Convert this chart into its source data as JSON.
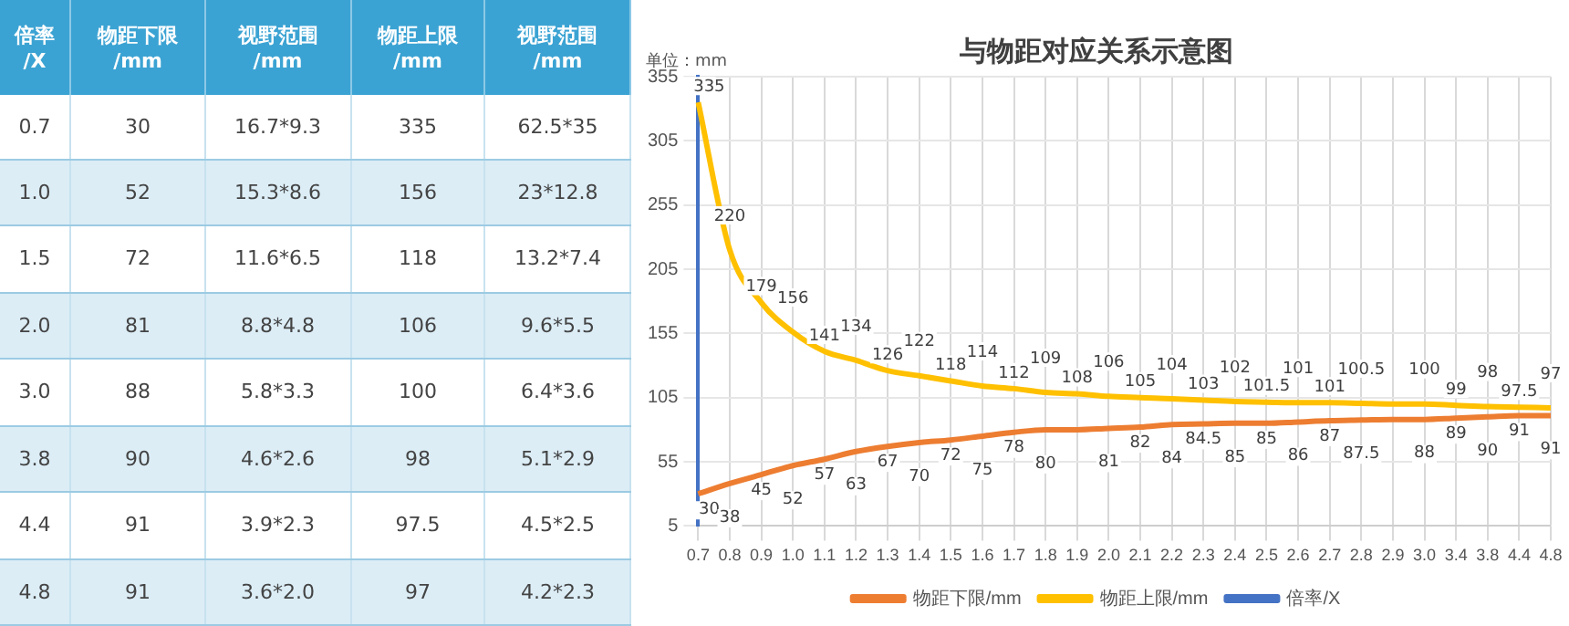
{
  "chart_data": [
    {
      "type": "other",
      "categories": [
        "倍率/X",
        "物距下限/mm",
        "视野范围/mm",
        "物距上限/mm",
        "视野范围/mm"
      ],
      "cell_labels": [
        [
          "0.7",
          "30",
          "16.7*9.3",
          "335",
          "62.5*35"
        ],
        [
          "1.0",
          "52",
          "15.3*8.6",
          "156",
          "23*12.8"
        ],
        [
          "1.5",
          "72",
          "11.6*6.5",
          "118",
          "13.2*7.4"
        ],
        [
          "2.0",
          "81",
          "8.8*4.8",
          "106",
          "9.6*5.5"
        ],
        [
          "3.0",
          "88",
          "5.8*3.3",
          "100",
          "6.4*3.6"
        ],
        [
          "3.8",
          "90",
          "4.6*2.6",
          "98",
          "5.1*2.9"
        ],
        [
          "4.4",
          "91",
          "3.9*2.3",
          "97.5",
          "4.5*2.5"
        ],
        [
          "4.8",
          "91",
          "3.6*2.0",
          "97",
          "4.2*2.3"
        ]
      ]
    },
    {
      "type": "line",
      "title": "与物距对应关系示意图",
      "ylabel": "单位：mm",
      "categories": [
        "0.7",
        "0.8",
        "0.9",
        "1.0",
        "1.1",
        "1.2",
        "1.3",
        "1.4",
        "1.5",
        "1.6",
        "1.7",
        "1.8",
        "1.9",
        "2.0",
        "2.1",
        "2.2",
        "2.3",
        "2.4",
        "2.5",
        "2.6",
        "2.7",
        "2.8",
        "2.9",
        "3.0",
        "3.4",
        "3.8",
        "4.4",
        "4.8"
      ],
      "series": [
        {
          "name": "物距下限/mm",
          "color": "#ed7d31",
          "values": [
            30,
            38,
            45,
            52,
            57,
            63,
            67,
            70,
            72,
            75,
            78,
            80,
            80,
            81,
            82,
            84,
            84.5,
            85,
            85,
            86,
            87,
            87.5,
            88,
            88,
            89,
            90,
            91,
            91
          ],
          "value_labels": [
            "30",
            "38",
            "45",
            "52",
            "57",
            "63",
            "67",
            "70",
            "72",
            "75",
            "78",
            "80",
            null,
            "81",
            "82",
            "84",
            "84.5",
            "85",
            "85",
            "86",
            "87",
            "87.5",
            null,
            "88",
            "89",
            "90",
            "91",
            "91"
          ]
        },
        {
          "name": "物距上限/mm",
          "color": "#ffc000",
          "values": [
            335,
            220,
            179,
            156,
            141,
            134,
            126,
            122,
            118,
            114,
            112,
            109,
            108,
            106,
            105,
            104,
            103,
            102,
            101.5,
            101,
            101,
            100.5,
            100,
            100,
            99,
            98,
            97.5,
            97
          ],
          "value_labels": [
            "335",
            "220",
            "179",
            "156",
            "141",
            "134",
            "126",
            "122",
            "118",
            "114",
            "112",
            "109",
            "108",
            "106",
            "105",
            "104",
            "103",
            "102",
            "101.5",
            "101",
            "101",
            "100.5",
            null,
            "100",
            "99",
            "98",
            "97.5",
            "97"
          ]
        },
        {
          "name": "倍率/X",
          "color": "#4472c4",
          "values": [
            null,
            null,
            null,
            null,
            null,
            null,
            null,
            null,
            null,
            null,
            null,
            null,
            null,
            null,
            null,
            null,
            null,
            null,
            null,
            null,
            null,
            null,
            null,
            null,
            null,
            null,
            null,
            null
          ]
        }
      ],
      "ylim": [
        5,
        355
      ],
      "yticks": [
        5,
        55,
        105,
        155,
        205,
        255,
        305,
        355
      ],
      "grid": true,
      "legend": "bottom",
      "marker": "none",
      "line_style": "solid"
    }
  ]
}
